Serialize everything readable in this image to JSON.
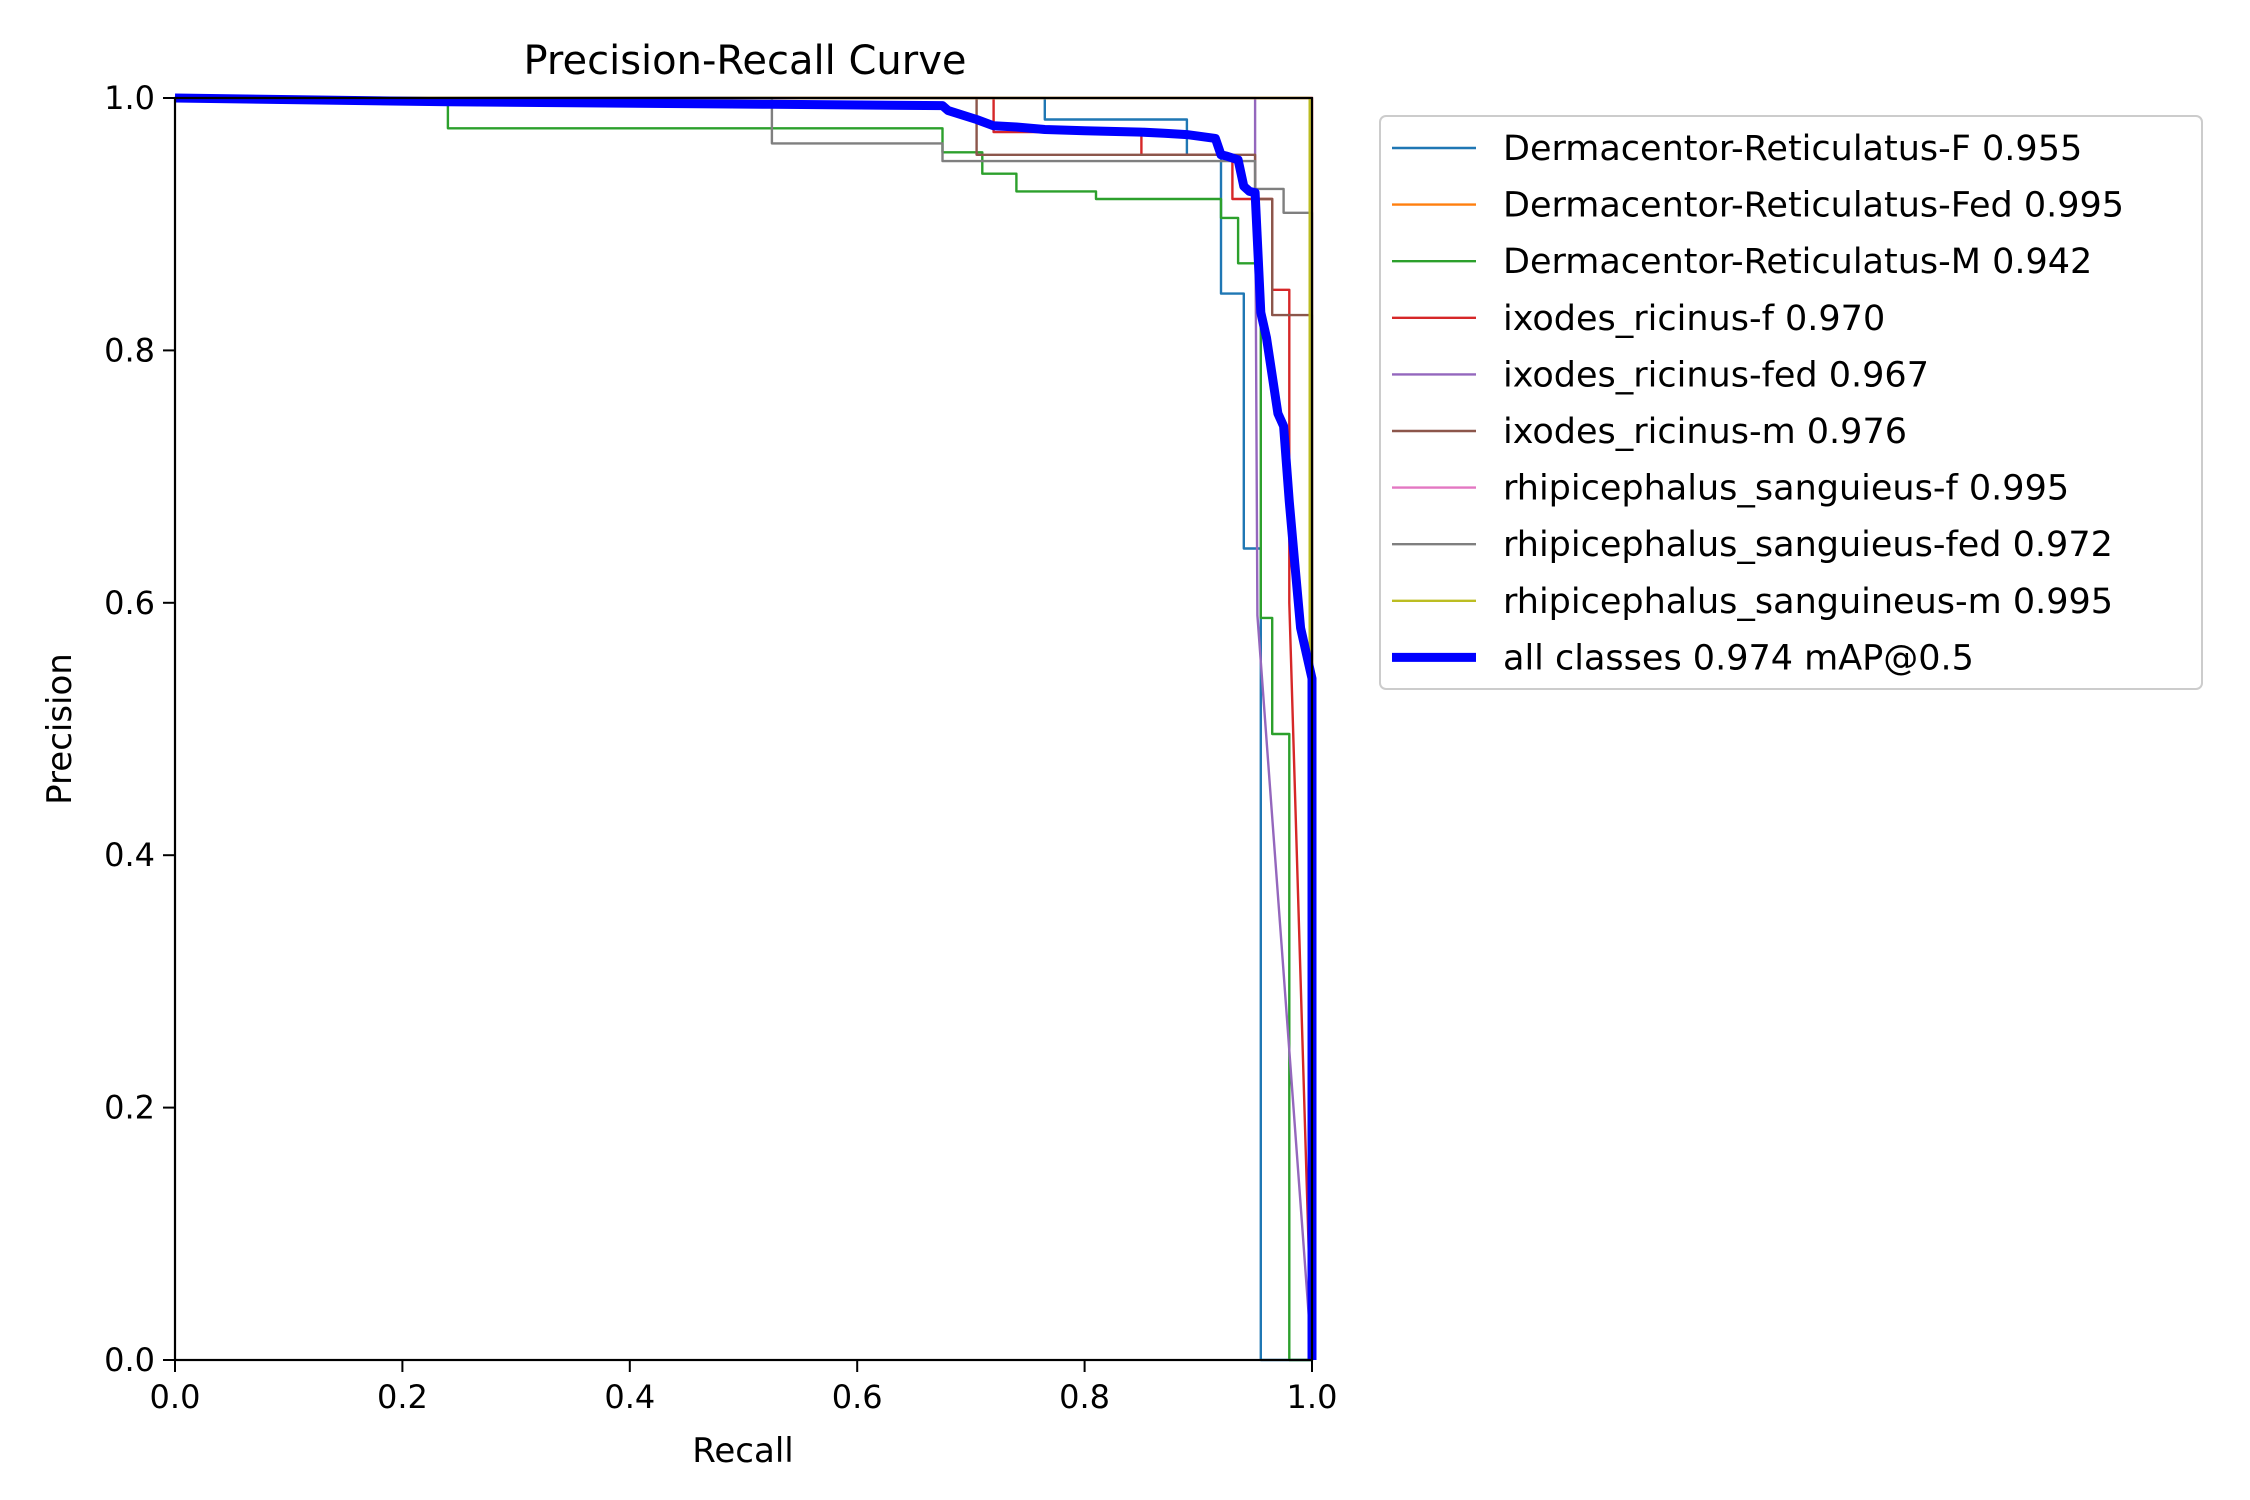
{
  "chart_data": {
    "type": "line",
    "title": "Precision-Recall Curve",
    "xlabel": "Recall",
    "ylabel": "Precision",
    "xlim": [
      0,
      1
    ],
    "ylim": [
      0,
      1
    ],
    "xticks": [
      "0.0",
      "0.2",
      "0.4",
      "0.6",
      "0.8",
      "1.0"
    ],
    "yticks": [
      "0.0",
      "0.2",
      "0.4",
      "0.6",
      "0.8",
      "1.0"
    ],
    "grid": false,
    "legend_position": "outside-right",
    "series": [
      {
        "name": "Dermacentor-Reticulatus-F 0.955",
        "color": "#1f77b4",
        "x": [
          0.0,
          0.765,
          0.765,
          0.89,
          0.89,
          0.92,
          0.92,
          0.94,
          0.94,
          0.955,
          0.955,
          1.0
        ],
        "y": [
          1.0,
          1.0,
          0.983,
          0.983,
          0.955,
          0.955,
          0.845,
          0.845,
          0.643,
          0.643,
          0.0,
          0.0
        ]
      },
      {
        "name": "Dermacentor-Reticulatus-Fed 0.995",
        "color": "#ff7f0e",
        "x": [
          0.0,
          1.0,
          1.0
        ],
        "y": [
          1.0,
          1.0,
          0.0
        ]
      },
      {
        "name": "Dermacentor-Reticulatus-M 0.942",
        "color": "#2ca02c",
        "x": [
          0.0,
          0.24,
          0.24,
          0.675,
          0.675,
          0.71,
          0.71,
          0.74,
          0.74,
          0.81,
          0.81,
          0.92,
          0.92,
          0.935,
          0.935,
          0.955,
          0.955,
          0.965,
          0.965,
          0.98,
          0.98,
          1.0
        ],
        "y": [
          1.0,
          1.0,
          0.976,
          0.976,
          0.957,
          0.957,
          0.94,
          0.94,
          0.926,
          0.926,
          0.92,
          0.92,
          0.905,
          0.905,
          0.869,
          0.869,
          0.588,
          0.588,
          0.496,
          0.496,
          0.0,
          0.0
        ]
      },
      {
        "name": "ixodes_ricinus-f 0.970",
        "color": "#d62728",
        "x": [
          0.0,
          0.72,
          0.72,
          0.85,
          0.85,
          0.93,
          0.93,
          0.965,
          0.965,
          0.98,
          0.98,
          1.0
        ],
        "y": [
          1.0,
          1.0,
          0.973,
          0.973,
          0.955,
          0.955,
          0.92,
          0.92,
          0.848,
          0.848,
          0.6,
          0.0
        ]
      },
      {
        "name": "ixodes_ricinus-fed 0.967",
        "color": "#9467bd",
        "x": [
          0.0,
          0.95,
          0.95,
          0.952,
          1.0
        ],
        "y": [
          1.0,
          1.0,
          0.95,
          0.59,
          0.0
        ]
      },
      {
        "name": "ixodes_ricinus-m 0.976",
        "color": "#8c564b",
        "x": [
          0.0,
          0.705,
          0.705,
          0.95,
          0.95,
          0.965,
          0.965,
          1.0,
          1.0
        ],
        "y": [
          1.0,
          1.0,
          0.955,
          0.955,
          0.92,
          0.92,
          0.828,
          0.828,
          0.0
        ]
      },
      {
        "name": "rhipicephalus_sanguieus-f 0.995",
        "color": "#e377c2",
        "x": [
          0.0,
          1.0,
          1.0
        ],
        "y": [
          1.0,
          1.0,
          0.0
        ]
      },
      {
        "name": "rhipicephalus_sanguieus-fed 0.972",
        "color": "#7f7f7f",
        "x": [
          0.0,
          0.525,
          0.525,
          0.675,
          0.675,
          0.95,
          0.95,
          0.975,
          0.975,
          1.0,
          1.0
        ],
        "y": [
          1.0,
          1.0,
          0.964,
          0.964,
          0.95,
          0.95,
          0.928,
          0.928,
          0.909,
          0.909,
          0.0
        ]
      },
      {
        "name": "rhipicephalus_sanguineus-m 0.995",
        "color": "#bcbd22",
        "x": [
          0.0,
          0.998,
          0.998
        ],
        "y": [
          1.0,
          1.0,
          0.0
        ]
      },
      {
        "name": "all classes 0.974 mAP@0.5",
        "color": "#0000ff",
        "x": [
          0.0,
          0.24,
          0.525,
          0.675,
          0.68,
          0.705,
          0.72,
          0.74,
          0.765,
          0.8,
          0.85,
          0.87,
          0.89,
          0.915,
          0.92,
          0.925,
          0.935,
          0.94,
          0.945,
          0.95,
          0.955,
          0.96,
          0.965,
          0.97,
          0.975,
          0.98,
          0.985,
          0.99,
          0.995,
          1.0,
          1.0
        ],
        "y": [
          1.0,
          0.997,
          0.995,
          0.994,
          0.99,
          0.983,
          0.978,
          0.977,
          0.975,
          0.974,
          0.973,
          0.972,
          0.971,
          0.968,
          0.955,
          0.954,
          0.951,
          0.93,
          0.926,
          0.925,
          0.83,
          0.81,
          0.78,
          0.75,
          0.74,
          0.68,
          0.63,
          0.58,
          0.56,
          0.54,
          0.0
        ]
      }
    ]
  }
}
